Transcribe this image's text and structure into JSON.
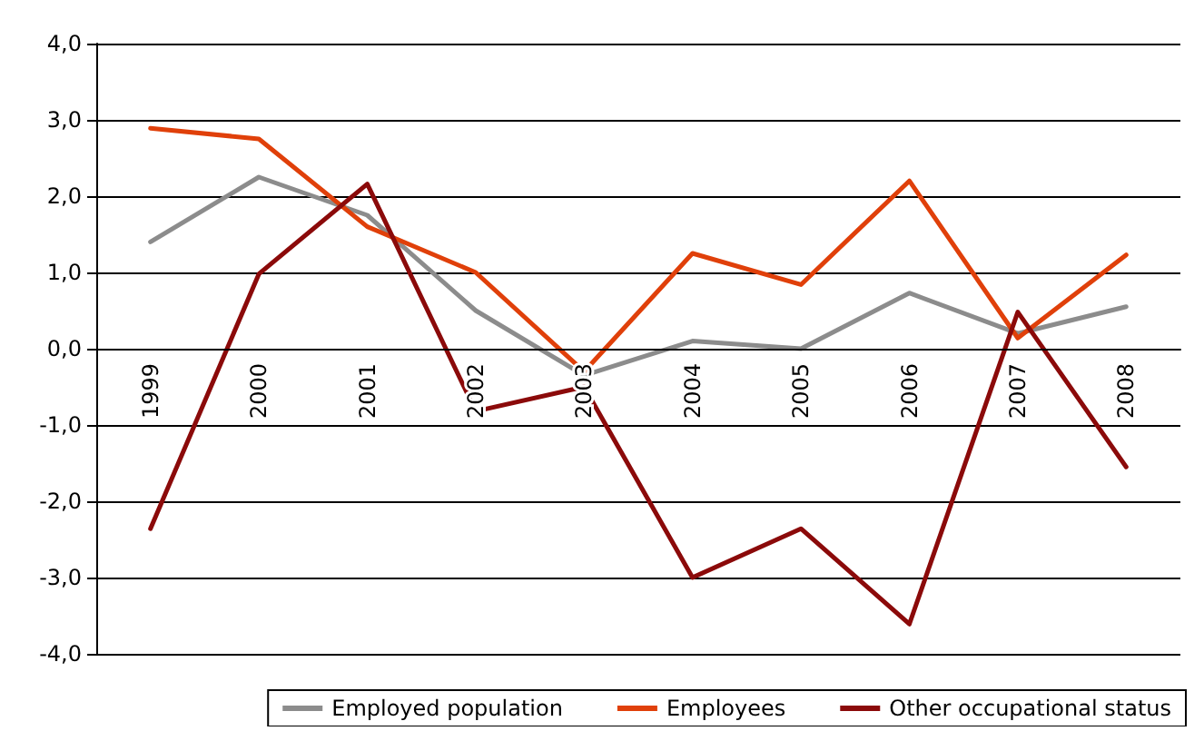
{
  "chart_data": {
    "type": "line",
    "categories": [
      "1999",
      "2000",
      "2001",
      "2002",
      "2003",
      "2004",
      "2005",
      "2006",
      "2007",
      "2008"
    ],
    "series": [
      {
        "name": "Employed population",
        "color": "#8c8c8c",
        "values": [
          1.4,
          2.25,
          1.75,
          0.5,
          -0.35,
          0.1,
          0.0,
          0.73,
          0.2,
          0.55
        ]
      },
      {
        "name": "Employees",
        "color": "#e0400a",
        "values": [
          2.89,
          2.75,
          1.6,
          1.0,
          -0.3,
          1.25,
          0.84,
          2.2,
          0.14,
          1.23
        ]
      },
      {
        "name": "Other occupational status",
        "color": "#8b0a0a",
        "values": [
          -2.36,
          0.98,
          2.16,
          -0.82,
          -0.5,
          -3.0,
          -2.36,
          -3.61,
          0.48,
          -1.55
        ]
      }
    ],
    "ylim": [
      -4,
      4
    ],
    "yticks": [
      {
        "value": -4,
        "label": "-4,0"
      },
      {
        "value": -3,
        "label": "-3,0"
      },
      {
        "value": -2,
        "label": "-2,0"
      },
      {
        "value": -1,
        "label": "-1,0"
      },
      {
        "value": 0,
        "label": "0,0"
      },
      {
        "value": 1,
        "label": "1,0"
      },
      {
        "value": 2,
        "label": "2,0"
      },
      {
        "value": 3,
        "label": "3,0"
      },
      {
        "value": 4,
        "label": "4,0"
      }
    ],
    "grid": "y",
    "legend": "bottom right",
    "marker": "none",
    "line_style": "solid"
  }
}
